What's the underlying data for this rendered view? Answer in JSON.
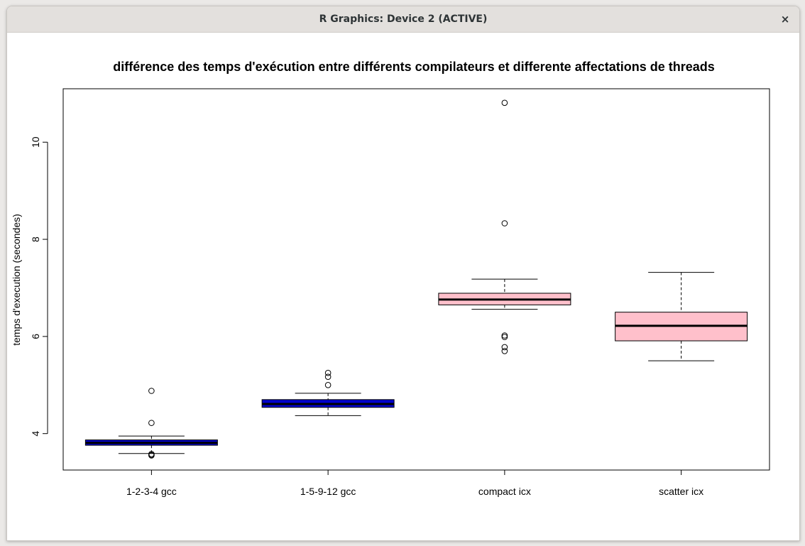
{
  "window": {
    "title": "R Graphics: Device 2 (ACTIVE)",
    "close_label": "×"
  },
  "chart_data": {
    "type": "boxplot",
    "title": "différence des temps d'exécution entre différents compilateurs et differente affectations de threads",
    "xlabel": "",
    "ylabel": "temps d'execution (secondes)",
    "ylim": [
      3.25,
      11.1
    ],
    "yticks": [
      4,
      6,
      8,
      10
    ],
    "categories": [
      "1-2-3-4 gcc",
      "1-5-9-12 gcc",
      "compact icx",
      "scatter icx"
    ],
    "boxes": [
      {
        "name": "1-2-3-4 gcc",
        "color": "#0000cd",
        "whisker_low": 3.59,
        "q1": 3.76,
        "median": 3.81,
        "q3": 3.87,
        "whisker_high": 3.95,
        "outliers": [
          4.88,
          4.22,
          3.58,
          3.56,
          3.55
        ]
      },
      {
        "name": "1-5-9-12 gcc",
        "color": "#0000cd",
        "whisker_low": 4.37,
        "q1": 4.54,
        "median": 4.61,
        "q3": 4.7,
        "whisker_high": 4.83,
        "outliers": [
          5.25,
          5.17,
          5.0
        ]
      },
      {
        "name": "compact icx",
        "color": "#ffc0cb",
        "whisker_low": 6.56,
        "q1": 6.65,
        "median": 6.76,
        "q3": 6.89,
        "whisker_high": 7.18,
        "outliers": [
          10.81,
          8.33,
          6.02,
          5.99,
          5.78,
          5.7
        ]
      },
      {
        "name": "scatter icx",
        "color": "#ffc0cb",
        "whisker_low": 5.5,
        "q1": 5.91,
        "median": 6.22,
        "q3": 6.5,
        "whisker_high": 7.32,
        "outliers": []
      }
    ]
  }
}
